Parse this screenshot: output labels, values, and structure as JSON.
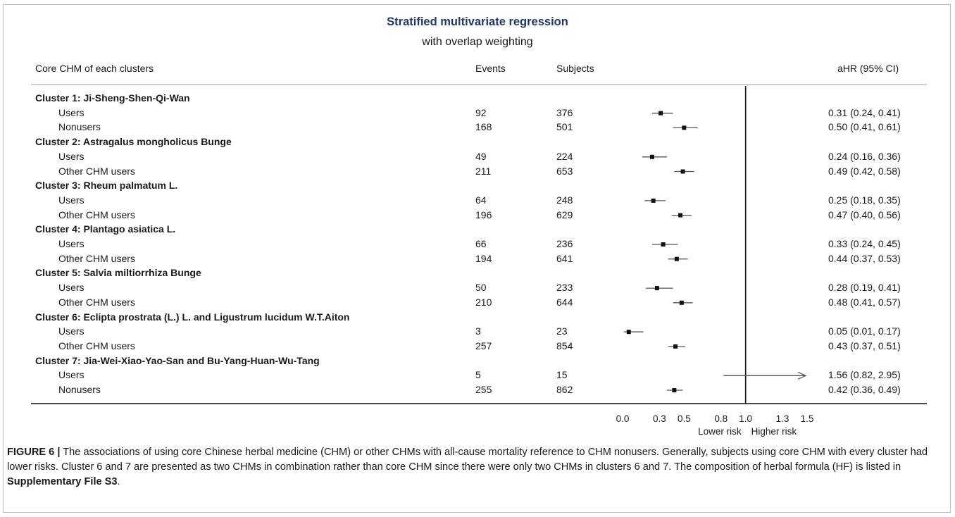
{
  "chart_data": {
    "type": "forest",
    "title": "Stratified multivariate regression",
    "subtitle": "with overlap weighting",
    "columns": {
      "label": "Core CHM of each clusters",
      "events": "Events",
      "subjects": "Subjects",
      "ci": "aHR (95% CI)"
    },
    "rows": [
      {
        "kind": "group",
        "label": "Cluster 1: Ji-Sheng-Shen-Qi-Wan"
      },
      {
        "kind": "item",
        "label": "Users",
        "events": "92",
        "subjects": "376",
        "hr": 0.31,
        "lo": 0.24,
        "hi": 0.41,
        "ci": "0.31 (0.24, 0.41)"
      },
      {
        "kind": "item",
        "label": "Nonusers",
        "events": "168",
        "subjects": "501",
        "hr": 0.5,
        "lo": 0.41,
        "hi": 0.61,
        "ci": "0.50 (0.41, 0.61)"
      },
      {
        "kind": "group",
        "label": "Cluster 2: Astragalus mongholicus Bunge"
      },
      {
        "kind": "item",
        "label": "Users",
        "events": "49",
        "subjects": "224",
        "hr": 0.24,
        "lo": 0.16,
        "hi": 0.36,
        "ci": "0.24 (0.16, 0.36)"
      },
      {
        "kind": "item",
        "label": "Other CHM users",
        "events": "211",
        "subjects": "653",
        "hr": 0.49,
        "lo": 0.42,
        "hi": 0.58,
        "ci": "0.49 (0.42, 0.58)"
      },
      {
        "kind": "group",
        "label": "Cluster 3: Rheum palmatum L."
      },
      {
        "kind": "item",
        "label": "Users",
        "events": "64",
        "subjects": "248",
        "hr": 0.25,
        "lo": 0.18,
        "hi": 0.35,
        "ci": "0.25 (0.18, 0.35)"
      },
      {
        "kind": "item",
        "label": "Other CHM users",
        "events": "196",
        "subjects": "629",
        "hr": 0.47,
        "lo": 0.4,
        "hi": 0.56,
        "ci": "0.47 (0.40, 0.56)"
      },
      {
        "kind": "group",
        "label": "Cluster 4: Plantago asiatica L."
      },
      {
        "kind": "item",
        "label": "Users",
        "events": "66",
        "subjects": "236",
        "hr": 0.33,
        "lo": 0.24,
        "hi": 0.45,
        "ci": "0.33 (0.24, 0.45)"
      },
      {
        "kind": "item",
        "label": "Other CHM users",
        "events": "194",
        "subjects": "641",
        "hr": 0.44,
        "lo": 0.37,
        "hi": 0.53,
        "ci": "0.44 (0.37, 0.53)"
      },
      {
        "kind": "group",
        "label": "Cluster 5: Salvia miltiorrhiza Bunge"
      },
      {
        "kind": "item",
        "label": "Users",
        "events": "50",
        "subjects": "233",
        "hr": 0.28,
        "lo": 0.19,
        "hi": 0.41,
        "ci": "0.28 (0.19, 0.41)"
      },
      {
        "kind": "item",
        "label": "Other CHM users",
        "events": "210",
        "subjects": "644",
        "hr": 0.48,
        "lo": 0.41,
        "hi": 0.57,
        "ci": "0.48 (0.41, 0.57)"
      },
      {
        "kind": "group",
        "label": "Cluster 6: Eclipta prostrata (L.) L. and Ligustrum lucidum W.T.Aiton"
      },
      {
        "kind": "item",
        "label": "Users",
        "events": "3",
        "subjects": "23",
        "hr": 0.05,
        "lo": 0.01,
        "hi": 0.17,
        "ci": "0.05 (0.01, 0.17)"
      },
      {
        "kind": "item",
        "label": "Other CHM users",
        "events": "257",
        "subjects": "854",
        "hr": 0.43,
        "lo": 0.37,
        "hi": 0.51,
        "ci": "0.43 (0.37, 0.51)"
      },
      {
        "kind": "group",
        "label": "Cluster 7: Jia-Wei-Xiao-Yao-San and Bu-Yang-Huan-Wu-Tang"
      },
      {
        "kind": "item",
        "label": "Users",
        "events": "5",
        "subjects": "15",
        "hr": 1.56,
        "lo": 0.82,
        "hi": 2.95,
        "ci": "1.56 (0.82, 2.95)",
        "arrow": true
      },
      {
        "kind": "item",
        "label": "Nonusers",
        "events": "255",
        "subjects": "862",
        "hr": 0.42,
        "lo": 0.36,
        "hi": 0.49,
        "ci": "0.42 (0.36, 0.49)"
      }
    ],
    "x_ticks": [
      "0.0",
      "0.3",
      "0.5",
      "0.8",
      "1.0",
      "1.3",
      "1.5"
    ],
    "x_range": [
      0,
      1.5
    ],
    "reference_line": 1.0,
    "annotations": {
      "left": "Lower risk",
      "right": "Higher risk"
    }
  },
  "caption": {
    "label": "FIGURE 6 |",
    "text": " The associations of using core Chinese herbal medicine (CHM) or other CHMs with all-cause mortality reference to CHM nonusers. Generally, subjects using core CHM with every cluster had lower risks. Cluster 6 and 7 are presented as two CHMs in combination rather than core CHM since there were only two CHMs in clusters 6 and 7. The composition of herbal formula (HF) is listed in ",
    "link": "Supplementary File S3",
    "end": "."
  },
  "colors": {
    "title": "#1f3864",
    "marker": "#111111",
    "ci_line": "#555555"
  }
}
